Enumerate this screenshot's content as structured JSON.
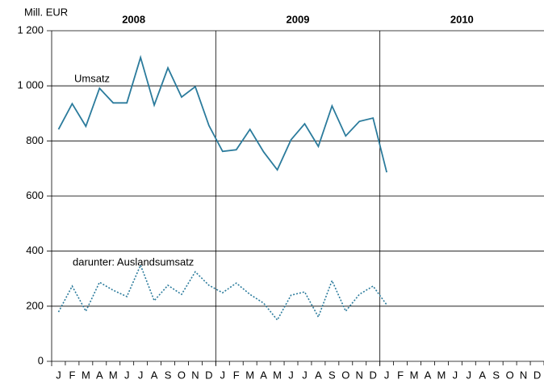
{
  "chart_data": {
    "type": "line",
    "y_unit": "Mill. EUR",
    "years": [
      "2008",
      "2009",
      "2010"
    ],
    "categories": [
      "J",
      "F",
      "M",
      "A",
      "M",
      "J",
      "J",
      "A",
      "S",
      "O",
      "N",
      "D",
      "J",
      "F",
      "M",
      "A",
      "M",
      "J",
      "J",
      "A",
      "S",
      "O",
      "N",
      "D",
      "J",
      "F",
      "M",
      "A",
      "M",
      "J",
      "J",
      "A",
      "S",
      "O",
      "N",
      "D"
    ],
    "series": [
      {
        "name": "Umsatz",
        "color": "#2b7b9c",
        "dash": false,
        "values": [
          842,
          935,
          853,
          991,
          938,
          938,
          1103,
          930,
          1065,
          959,
          997,
          856,
          762,
          768,
          842,
          760,
          695,
          804,
          862,
          780,
          927,
          818,
          871,
          883,
          686,
          null,
          null,
          null,
          null,
          null,
          null,
          null,
          null,
          null,
          null,
          null
        ]
      },
      {
        "name": "darunter: Auslandsumsatz",
        "color": "#2b7b9c",
        "dash": true,
        "values": [
          179,
          273,
          182,
          287,
          258,
          235,
          349,
          220,
          276,
          243,
          325,
          276,
          249,
          284,
          243,
          211,
          150,
          240,
          252,
          161,
          293,
          182,
          243,
          273,
          205,
          null,
          null,
          null,
          null,
          null,
          null,
          null,
          null,
          null,
          null,
          null
        ]
      }
    ],
    "ylim": [
      0,
      1200
    ],
    "yticks": [
      0,
      200,
      400,
      600,
      800,
      {
        "value": 1000,
        "label": "1 000"
      },
      {
        "value": 1200,
        "label": "1 200"
      }
    ],
    "grid": true
  }
}
